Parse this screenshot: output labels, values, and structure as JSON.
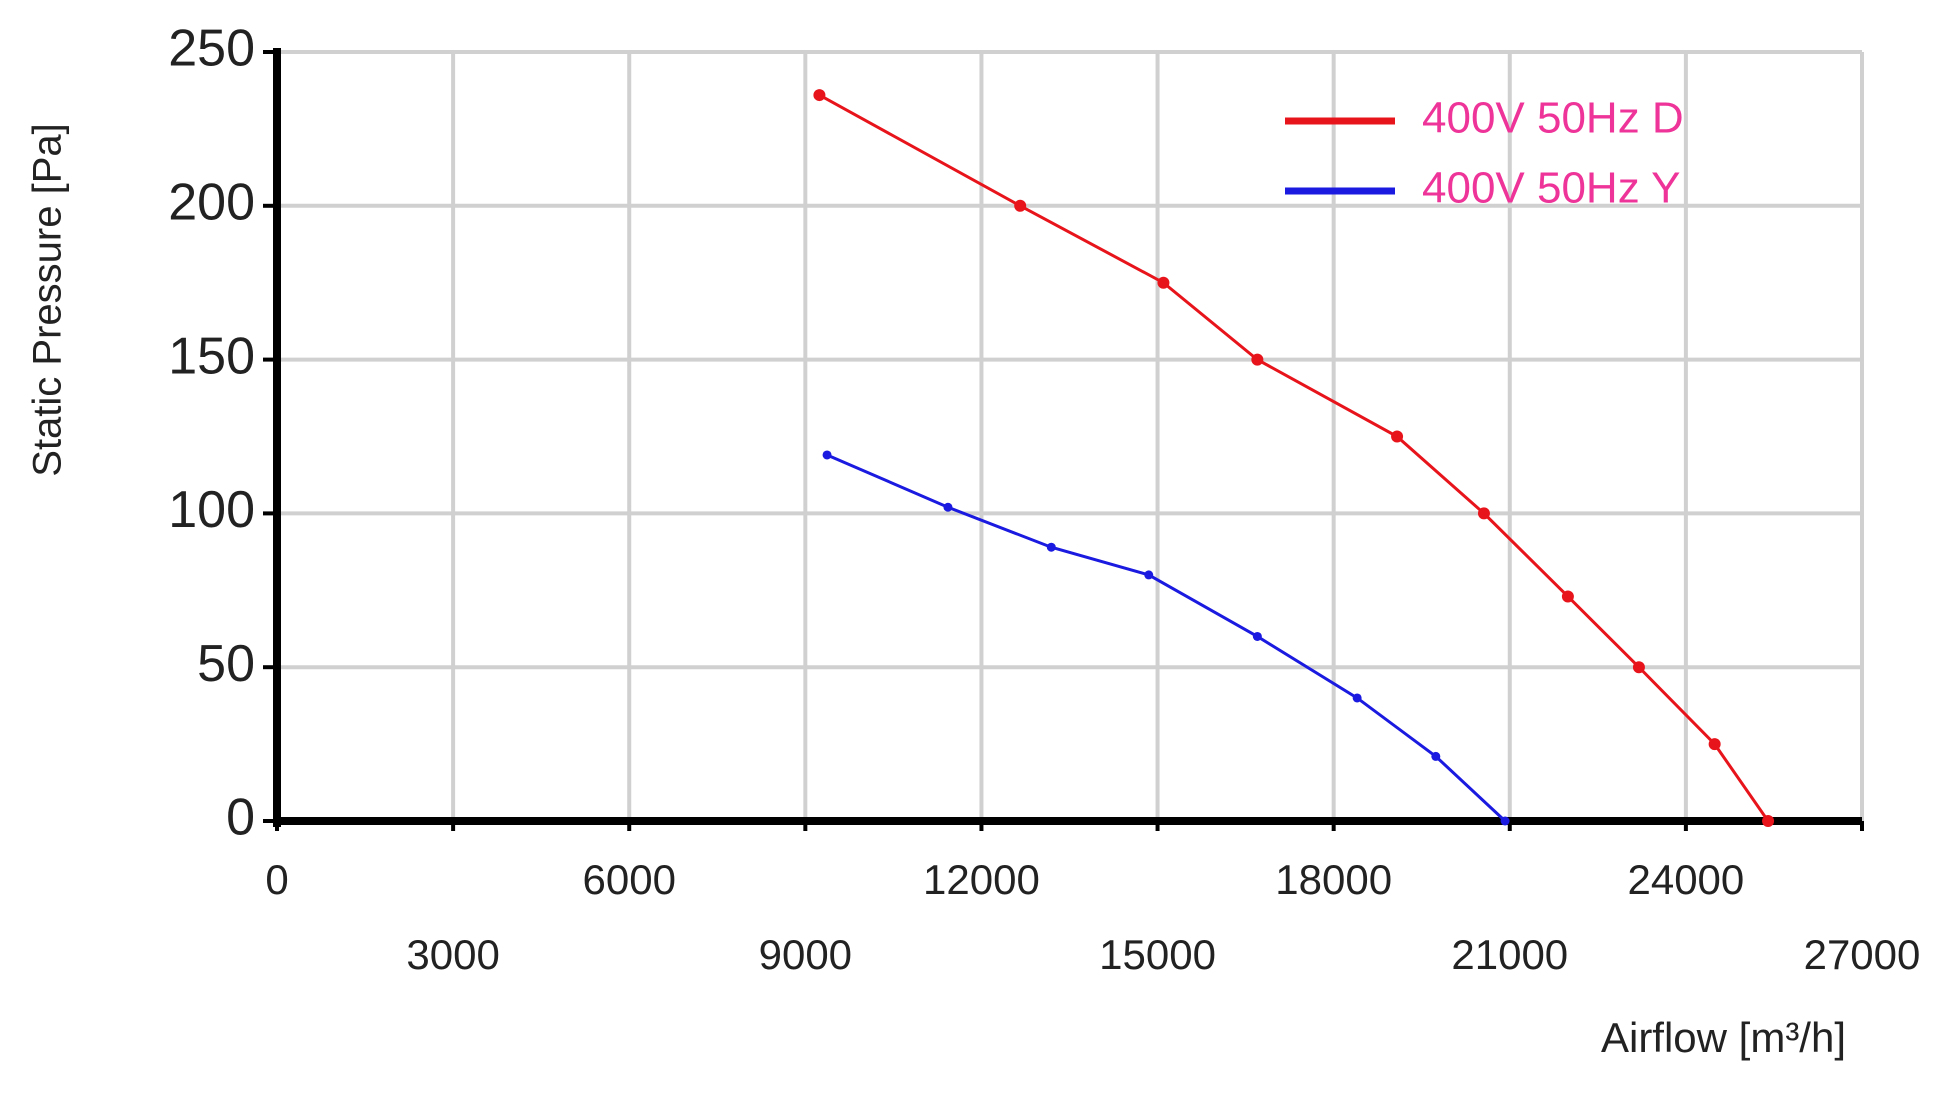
{
  "chart_data": {
    "type": "line",
    "x_label": "Airflow [m³/h]",
    "y_label": "Static Pressure [Pa]",
    "xlim": [
      0,
      27000
    ],
    "xticks": [
      0,
      3000,
      6000,
      9000,
      12000,
      15000,
      18000,
      21000,
      24000,
      27000
    ],
    "ylim": [
      0,
      250
    ],
    "yticks": [
      0,
      50,
      100,
      150,
      200,
      250
    ],
    "grid": true,
    "legend": "top-right",
    "series": [
      {
        "name": "400V 50Hz D",
        "color": "#e8141b",
        "x": [
          9240,
          12660,
          15100,
          16700,
          19080,
          20560,
          21990,
          23200,
          24490,
          25400
        ],
        "values": [
          236,
          200,
          175,
          150,
          125,
          100,
          73,
          50,
          25,
          0
        ]
      },
      {
        "name": "400V 50Hz Y",
        "color": "#1a1ae0",
        "x": [
          9370,
          11430,
          13190,
          14850,
          16700,
          18400,
          19740,
          20920
        ],
        "values": [
          119,
          102,
          89,
          80,
          60,
          40,
          21,
          0
        ]
      }
    ]
  }
}
